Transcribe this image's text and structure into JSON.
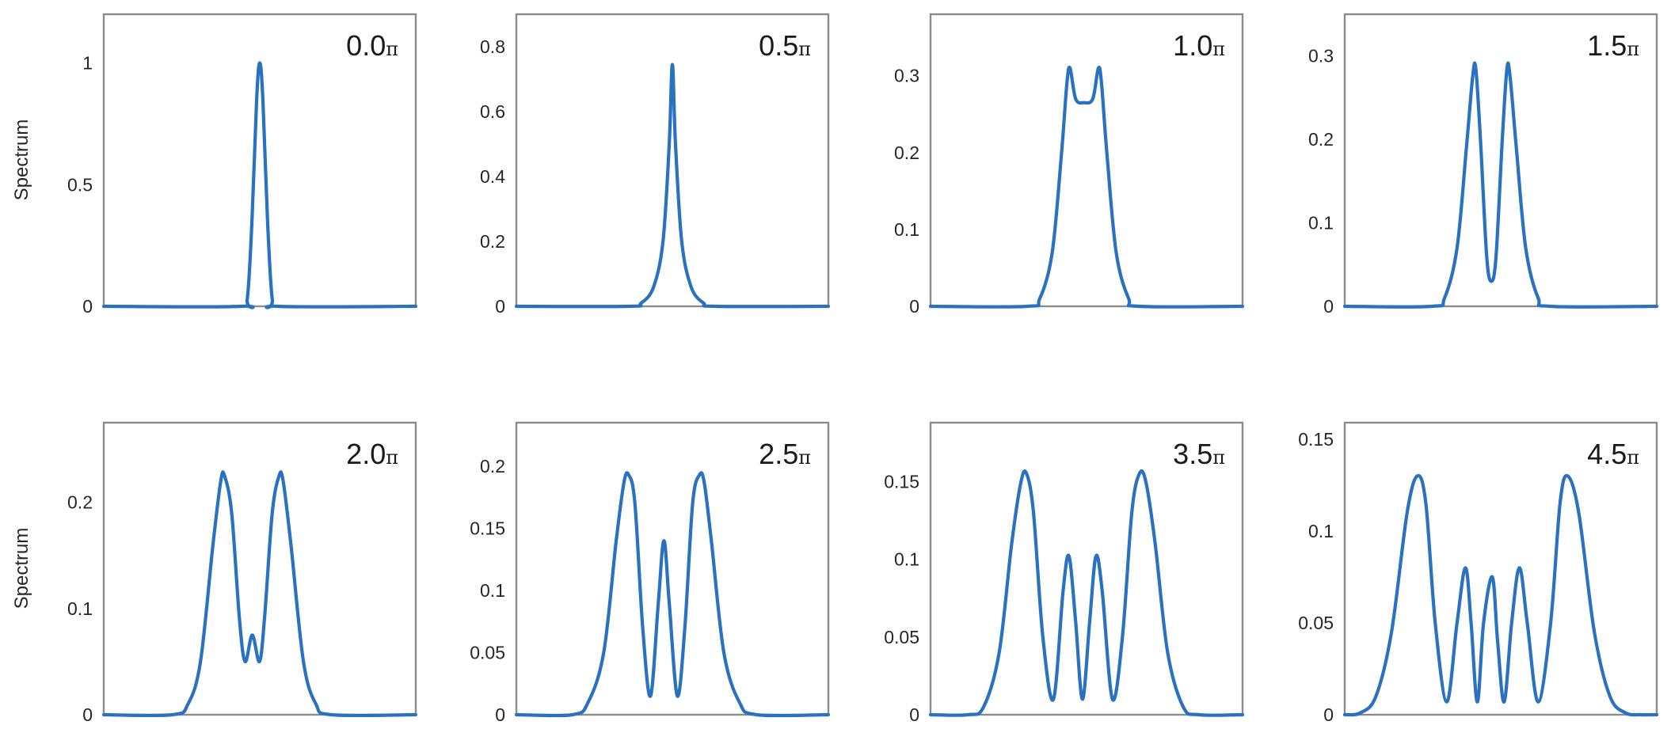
{
  "figure": {
    "layout": {
      "rows": 2,
      "cols": 4
    },
    "line_color": "#2a72c0",
    "frame_color": "#8c8c8c",
    "text_color": "#262626",
    "ylabel_text": "Spectrum"
  },
  "chart_data": [
    {
      "type": "line",
      "title": "0.0π",
      "title_main": "0.0",
      "title_symbol": "π",
      "xlabel": "",
      "ylabel": "Spectrum",
      "ylim": [
        0,
        1.2
      ],
      "yticks": [
        0,
        0.5,
        1
      ],
      "ytick_labels": [
        "0",
        "0.5",
        "1"
      ],
      "xticks": [],
      "grid": false,
      "x_normalized": true,
      "points": [
        [
          0,
          0
        ],
        [
          0.44,
          0
        ],
        [
          0.46,
          0.03
        ],
        [
          0.475,
          0.35
        ],
        [
          0.49,
          0.85
        ],
        [
          0.5,
          1.0
        ],
        [
          0.51,
          0.85
        ],
        [
          0.525,
          0.35
        ],
        [
          0.54,
          0.03
        ],
        [
          0.56,
          0
        ],
        [
          1,
          0
        ]
      ]
    },
    {
      "type": "line",
      "title": "0.5π",
      "title_main": "0.5",
      "title_symbol": "π",
      "xlabel": "",
      "ylabel": "",
      "ylim": [
        0,
        0.9
      ],
      "yticks": [
        0,
        0.2,
        0.4,
        0.6,
        0.8
      ],
      "ytick_labels": [
        "0",
        "0.2",
        "0.4",
        "0.6",
        "0.8"
      ],
      "xticks": [],
      "grid": false,
      "x_normalized": true,
      "points": [
        [
          0,
          0
        ],
        [
          0.36,
          0
        ],
        [
          0.4,
          0.01
        ],
        [
          0.44,
          0.06
        ],
        [
          0.47,
          0.2
        ],
        [
          0.49,
          0.5
        ],
        [
          0.5,
          0.745
        ],
        [
          0.51,
          0.5
        ],
        [
          0.53,
          0.2
        ],
        [
          0.56,
          0.06
        ],
        [
          0.6,
          0.01
        ],
        [
          0.64,
          0
        ],
        [
          1,
          0
        ]
      ]
    },
    {
      "type": "line",
      "title": "1.0π",
      "title_main": "1.0",
      "title_symbol": "π",
      "xlabel": "",
      "ylabel": "",
      "ylim": [
        0,
        0.38
      ],
      "yticks": [
        0,
        0.1,
        0.2,
        0.3
      ],
      "ytick_labels": [
        "0",
        "0.1",
        "0.2",
        "0.3"
      ],
      "xticks": [],
      "grid": false,
      "x_normalized": true,
      "points": [
        [
          0,
          0
        ],
        [
          0.31,
          0
        ],
        [
          0.35,
          0.01
        ],
        [
          0.39,
          0.07
        ],
        [
          0.42,
          0.2
        ],
        [
          0.437,
          0.29
        ],
        [
          0.447,
          0.31
        ],
        [
          0.465,
          0.27
        ],
        [
          0.492,
          0.265
        ],
        [
          0.52,
          0.27
        ],
        [
          0.538,
          0.31
        ],
        [
          0.548,
          0.29
        ],
        [
          0.565,
          0.2
        ],
        [
          0.595,
          0.07
        ],
        [
          0.635,
          0.01
        ],
        [
          0.67,
          0
        ],
        [
          1,
          0
        ]
      ]
    },
    {
      "type": "line",
      "title": "1.5π",
      "title_main": "1.5",
      "title_symbol": "π",
      "xlabel": "",
      "ylabel": "",
      "ylim": [
        0,
        0.35
      ],
      "yticks": [
        0,
        0.1,
        0.2,
        0.3
      ],
      "ytick_labels": [
        "0",
        "0.1",
        "0.2",
        "0.3"
      ],
      "xticks": [],
      "grid": false,
      "x_normalized": true,
      "points": [
        [
          0,
          0
        ],
        [
          0.28,
          0
        ],
        [
          0.32,
          0.01
        ],
        [
          0.36,
          0.07
        ],
        [
          0.39,
          0.19
        ],
        [
          0.41,
          0.275
        ],
        [
          0.42,
          0.285
        ],
        [
          0.435,
          0.2
        ],
        [
          0.455,
          0.06
        ],
        [
          0.47,
          0.03
        ],
        [
          0.485,
          0.06
        ],
        [
          0.505,
          0.2
        ],
        [
          0.52,
          0.285
        ],
        [
          0.53,
          0.275
        ],
        [
          0.55,
          0.19
        ],
        [
          0.58,
          0.07
        ],
        [
          0.62,
          0.01
        ],
        [
          0.66,
          0
        ],
        [
          1,
          0
        ]
      ]
    },
    {
      "type": "line",
      "title": "2.0π",
      "title_main": "2.0",
      "title_symbol": "π",
      "xlabel": "",
      "ylabel": "Spectrum",
      "ylim": [
        0,
        0.275
      ],
      "yticks": [
        0,
        0.1,
        0.2
      ],
      "ytick_labels": [
        "0",
        "0.1",
        "0.2"
      ],
      "xticks": [],
      "grid": false,
      "x_normalized": true,
      "points": [
        [
          0,
          0
        ],
        [
          0.22,
          0
        ],
        [
          0.27,
          0.01
        ],
        [
          0.31,
          0.05
        ],
        [
          0.35,
          0.16
        ],
        [
          0.375,
          0.22
        ],
        [
          0.387,
          0.225
        ],
        [
          0.41,
          0.19
        ],
        [
          0.435,
          0.09
        ],
        [
          0.453,
          0.05
        ],
        [
          0.476,
          0.075
        ],
        [
          0.499,
          0.05
        ],
        [
          0.515,
          0.09
        ],
        [
          0.54,
          0.19
        ],
        [
          0.562,
          0.225
        ],
        [
          0.575,
          0.22
        ],
        [
          0.6,
          0.16
        ],
        [
          0.64,
          0.05
        ],
        [
          0.68,
          0.01
        ],
        [
          0.73,
          0
        ],
        [
          1,
          0
        ]
      ]
    },
    {
      "type": "line",
      "title": "2.5π",
      "title_main": "2.5",
      "title_symbol": "π",
      "xlabel": "",
      "ylabel": "",
      "ylim": [
        0,
        0.235
      ],
      "yticks": [
        0,
        0.05,
        0.1,
        0.15,
        0.2
      ],
      "ytick_labels": [
        "0",
        "0.05",
        "0.1",
        "0.15",
        "0.2"
      ],
      "xticks": [],
      "grid": false,
      "x_normalized": true,
      "points": [
        [
          0,
          0
        ],
        [
          0.18,
          0
        ],
        [
          0.23,
          0.01
        ],
        [
          0.28,
          0.05
        ],
        [
          0.32,
          0.14
        ],
        [
          0.345,
          0.187
        ],
        [
          0.36,
          0.193
        ],
        [
          0.38,
          0.17
        ],
        [
          0.405,
          0.07
        ],
        [
          0.43,
          0.015
        ],
        [
          0.455,
          0.09
        ],
        [
          0.473,
          0.14
        ],
        [
          0.49,
          0.09
        ],
        [
          0.516,
          0.015
        ],
        [
          0.54,
          0.07
        ],
        [
          0.565,
          0.17
        ],
        [
          0.587,
          0.193
        ],
        [
          0.602,
          0.187
        ],
        [
          0.625,
          0.14
        ],
        [
          0.665,
          0.05
        ],
        [
          0.715,
          0.01
        ],
        [
          0.77,
          0
        ],
        [
          1,
          0
        ]
      ]
    },
    {
      "type": "line",
      "title": "3.5π",
      "title_main": "3.5",
      "title_symbol": "π",
      "xlabel": "",
      "ylabel": "",
      "ylim": [
        0,
        0.188
      ],
      "yticks": [
        0,
        0.05,
        0.1,
        0.15
      ],
      "ytick_labels": [
        "0",
        "0.05",
        "0.1",
        "0.15"
      ],
      "xticks": [],
      "grid": false,
      "x_normalized": true,
      "points": [
        [
          0,
          0
        ],
        [
          0.12,
          0
        ],
        [
          0.17,
          0.005
        ],
        [
          0.22,
          0.04
        ],
        [
          0.26,
          0.11
        ],
        [
          0.29,
          0.15
        ],
        [
          0.308,
          0.155
        ],
        [
          0.33,
          0.13
        ],
        [
          0.36,
          0.05
        ],
        [
          0.394,
          0.01
        ],
        [
          0.425,
          0.08
        ],
        [
          0.444,
          0.102
        ],
        [
          0.465,
          0.06
        ],
        [
          0.487,
          0.01
        ],
        [
          0.51,
          0.06
        ],
        [
          0.53,
          0.102
        ],
        [
          0.55,
          0.08
        ],
        [
          0.583,
          0.01
        ],
        [
          0.615,
          0.05
        ],
        [
          0.645,
          0.13
        ],
        [
          0.669,
          0.155
        ],
        [
          0.69,
          0.15
        ],
        [
          0.72,
          0.11
        ],
        [
          0.76,
          0.04
        ],
        [
          0.81,
          0.005
        ],
        [
          0.86,
          0
        ],
        [
          1,
          0
        ]
      ]
    },
    {
      "type": "line",
      "title": "4.5π",
      "title_main": "4.5",
      "title_symbol": "π",
      "xlabel": "",
      "ylabel": "",
      "ylim": [
        0,
        0.159
      ],
      "yticks": [
        0,
        0.05,
        0.1,
        0.15
      ],
      "ytick_labels": [
        "0",
        "0.05",
        "0.1",
        "0.15"
      ],
      "xticks": [],
      "grid": false,
      "x_normalized": true,
      "points": [
        [
          0,
          0
        ],
        [
          0.05,
          0.001
        ],
        [
          0.1,
          0.01
        ],
        [
          0.15,
          0.045
        ],
        [
          0.2,
          0.11
        ],
        [
          0.233,
          0.13
        ],
        [
          0.26,
          0.115
        ],
        [
          0.29,
          0.05
        ],
        [
          0.327,
          0.007
        ],
        [
          0.36,
          0.05
        ],
        [
          0.387,
          0.08
        ],
        [
          0.405,
          0.05
        ],
        [
          0.425,
          0.007
        ],
        [
          0.445,
          0.05
        ],
        [
          0.473,
          0.075
        ],
        [
          0.49,
          0.04
        ],
        [
          0.511,
          0.007
        ],
        [
          0.535,
          0.05
        ],
        [
          0.56,
          0.08
        ],
        [
          0.585,
          0.05
        ],
        [
          0.62,
          0.007
        ],
        [
          0.66,
          0.05
        ],
        [
          0.69,
          0.115
        ],
        [
          0.714,
          0.13
        ],
        [
          0.75,
          0.11
        ],
        [
          0.8,
          0.045
        ],
        [
          0.85,
          0.01
        ],
        [
          0.9,
          0.001
        ],
        [
          0.95,
          0
        ],
        [
          1,
          0
        ]
      ]
    }
  ]
}
